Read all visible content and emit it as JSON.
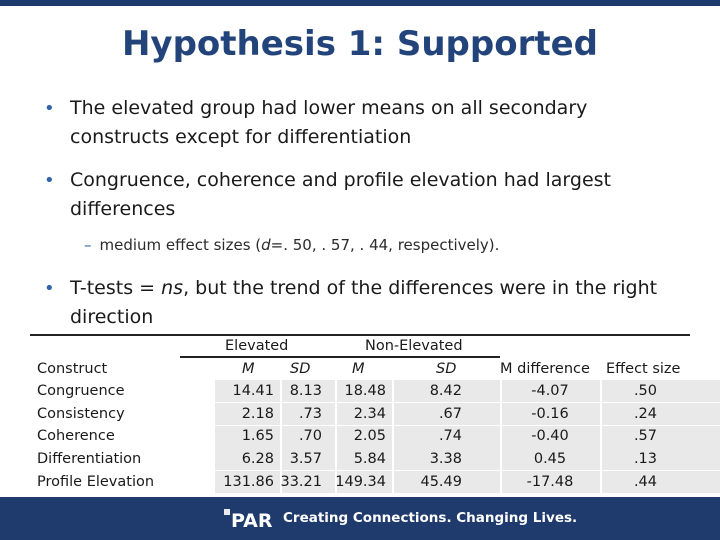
{
  "title": "Hypothesis 1: Supported",
  "bullets": [
    {
      "line1": "The elevated group had lower means on all secondary",
      "line2": "constructs except for differentiation"
    },
    {
      "line1": "Congruence, coherence and profile elevation had largest",
      "line2": "differences"
    },
    {
      "line1_pre": "T-tests = ",
      "line1_em": "ns",
      "line1_post": ", but the trend of the differences were in the right",
      "line2": "direction"
    }
  ],
  "sub_bullet": {
    "pre": "medium effect sizes (",
    "em": "d",
    "post": "=. 50, . 57, . 44, respectively)."
  },
  "table": {
    "group_headers": {
      "elevated": "Elevated",
      "non_elevated": "Non-Elevated"
    },
    "headers": {
      "construct": "Construct",
      "m1": "M",
      "sd1": "SD",
      "m2": "M",
      "sd2": "SD",
      "mdiff": "M difference",
      "effect": "Effect size"
    },
    "rows": [
      {
        "construct": "Congruence",
        "m1": "14.41",
        "sd1": "8.13",
        "m2": "18.48",
        "sd2": "8.42",
        "mdiff": "-4.07",
        "effect": ".50"
      },
      {
        "construct": "Consistency",
        "m1": "2.18",
        "sd1": ".73",
        "m2": "2.34",
        "sd2": ".67",
        "mdiff": "-0.16",
        "effect": ".24"
      },
      {
        "construct": "Coherence",
        "m1": "1.65",
        "sd1": ".70",
        "m2": "2.05",
        "sd2": ".74",
        "mdiff": "-0.40",
        "effect": ".57"
      },
      {
        "construct": "Differentiation",
        "m1": "6.28",
        "sd1": "3.57",
        "m2": "5.84",
        "sd2": "3.38",
        "mdiff": "0.45",
        "effect": ".13"
      },
      {
        "construct": "Profile Elevation",
        "m1": "131.86",
        "sd1": "33.21",
        "m2": "149.34",
        "sd2": "45.49",
        "mdiff": "-17.48",
        "effect": ".44"
      }
    ]
  },
  "footer": {
    "logo_text": "PAR",
    "tagline": "Creating Connections. Changing Lives."
  },
  "colors": {
    "title": "#22447a",
    "footer": "#1f3a6d",
    "bullet": "#2f63a6"
  }
}
